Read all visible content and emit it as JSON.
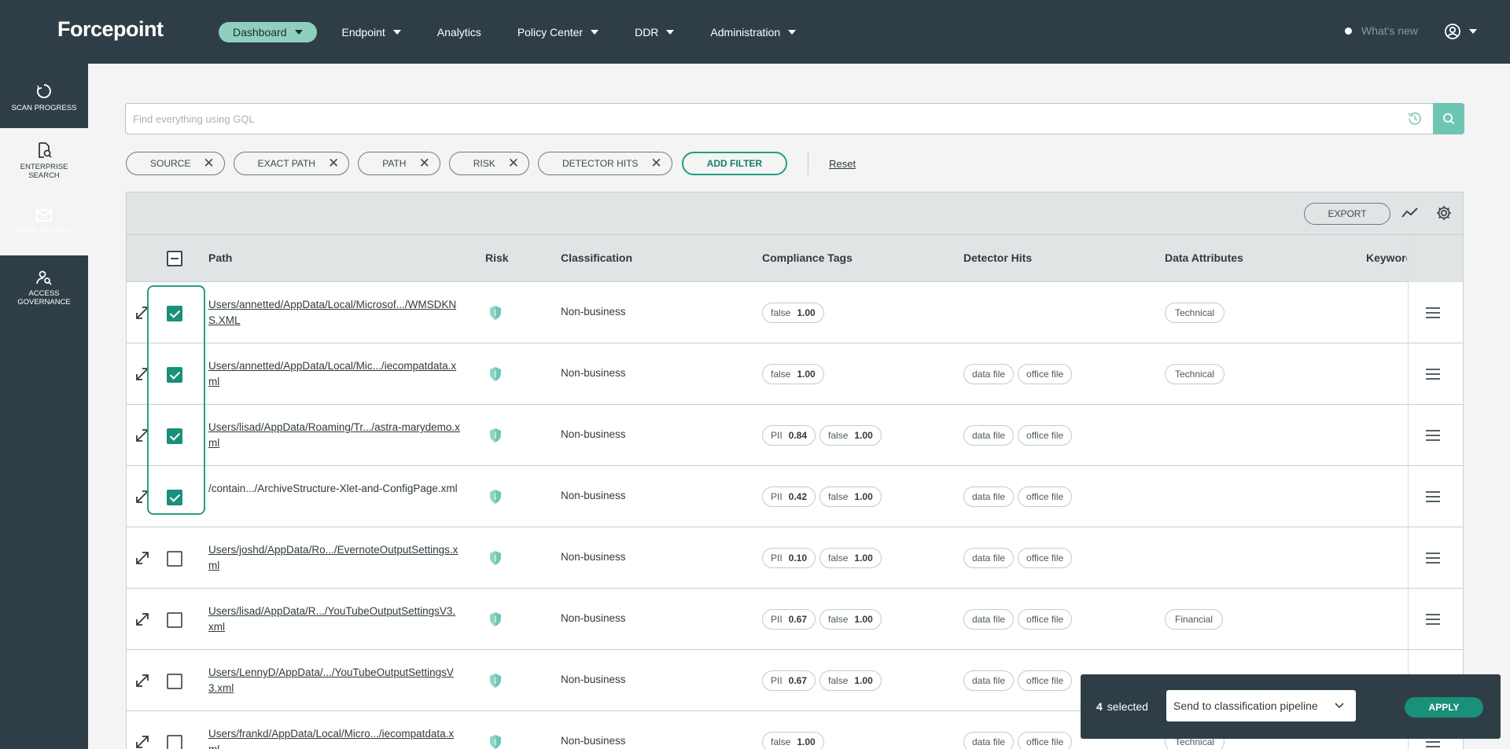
{
  "brand": {
    "logo_text": "Forcepoint"
  },
  "nav": {
    "items": [
      {
        "label": "Dashboard",
        "active": true,
        "dropdown": true
      },
      {
        "label": "Endpoint",
        "active": false,
        "dropdown": true
      },
      {
        "label": "Analytics",
        "active": false,
        "dropdown": false
      },
      {
        "label": "Policy Center",
        "active": false,
        "dropdown": true
      },
      {
        "label": "DDR",
        "active": false,
        "dropdown": true
      },
      {
        "label": "Administration",
        "active": false,
        "dropdown": true
      }
    ],
    "whats_new": "What's new"
  },
  "sidebar": {
    "items": [
      {
        "label": "SCAN PROGRESS",
        "icon": "progress-circle-icon"
      },
      {
        "label": "ENTERPRISE SEARCH",
        "icon": "document-search-icon",
        "active": true
      },
      {
        "label": "EMAIL SEARCH",
        "icon": "envelope-icon"
      },
      {
        "label": "ACCESS GOVERNANCE",
        "icon": "user-search-icon"
      }
    ]
  },
  "search": {
    "placeholder": "Find everything using GQL",
    "value": ""
  },
  "filters": {
    "chips": [
      "SOURCE",
      "EXACT PATH",
      "PATH",
      "RISK",
      "DETECTOR HITS"
    ],
    "add_label": "ADD FILTER",
    "reset_label": "Reset"
  },
  "toolbar": {
    "export_label": "EXPORT"
  },
  "columns": {
    "path": "Path",
    "risk": "Risk",
    "classification": "Classification",
    "compliance": "Compliance Tags",
    "detectors": "Detector Hits",
    "attributes": "Data Attributes",
    "keywords": "Keywords"
  },
  "rows": [
    {
      "path": "Users/annetted/AppData/Local/Microsof.../WMSDKNS.XML",
      "link": true,
      "checked": true,
      "classification": "Non-business",
      "tags": [
        {
          "name": "false",
          "score": "1.00"
        }
      ],
      "detectors": [],
      "attributes": [
        "Technical"
      ]
    },
    {
      "path": "Users/annetted/AppData/Local/Mic.../iecompatdata.xml",
      "link": true,
      "checked": true,
      "classification": "Non-business",
      "tags": [
        {
          "name": "false",
          "score": "1.00"
        }
      ],
      "detectors": [
        "data file",
        "office file"
      ],
      "attributes": [
        "Technical"
      ]
    },
    {
      "path": "Users/lisad/AppData/Roaming/Tr.../astra-marydemo.xml",
      "link": true,
      "checked": true,
      "classification": "Non-business",
      "tags": [
        {
          "name": "PII",
          "score": "0.84"
        },
        {
          "name": "false",
          "score": "1.00"
        }
      ],
      "detectors": [
        "data file",
        "office file"
      ],
      "attributes": []
    },
    {
      "path": "/contain.../ArchiveStructure-Xlet-and-ConfigPage.xml",
      "link": false,
      "checked": true,
      "classification": "Non-business",
      "tags": [
        {
          "name": "PII",
          "score": "0.42"
        },
        {
          "name": "false",
          "score": "1.00"
        }
      ],
      "detectors": [
        "data file",
        "office file"
      ],
      "attributes": []
    },
    {
      "path": "Users/joshd/AppData/Ro.../EvernoteOutputSettings.xml",
      "link": true,
      "checked": false,
      "classification": "Non-business",
      "tags": [
        {
          "name": "PII",
          "score": "0.10"
        },
        {
          "name": "false",
          "score": "1.00"
        }
      ],
      "detectors": [
        "data file",
        "office file"
      ],
      "attributes": []
    },
    {
      "path": "Users/lisad/AppData/R.../YouTubeOutputSettingsV3.xml",
      "link": true,
      "checked": false,
      "classification": "Non-business",
      "tags": [
        {
          "name": "PII",
          "score": "0.67"
        },
        {
          "name": "false",
          "score": "1.00"
        }
      ],
      "detectors": [
        "data file",
        "office file"
      ],
      "attributes": [
        "Financial"
      ]
    },
    {
      "path": "Users/LennyD/AppData/.../YouTubeOutputSettingsV3.xml",
      "link": true,
      "checked": false,
      "classification": "Non-business",
      "tags": [
        {
          "name": "PII",
          "score": "0.67"
        },
        {
          "name": "false",
          "score": "1.00"
        }
      ],
      "detectors": [
        "data file",
        "office file"
      ],
      "attributes": []
    },
    {
      "path": "Users/frankd/AppData/Local/Micro.../iecompatdata.xml",
      "link": true,
      "checked": false,
      "classification": "Non-business",
      "tags": [
        {
          "name": "false",
          "score": "1.00"
        }
      ],
      "detectors": [
        "data file",
        "office file"
      ],
      "attributes": [
        "Technical"
      ]
    }
  ],
  "selection": {
    "count": "4",
    "count_label": "selected",
    "action_value": "Send to classification pipeline",
    "apply_label": "APPLY"
  },
  "colors": {
    "nav_bg": "#2f3e46",
    "accent": "#1a8f7a",
    "accent_light": "#6fc5b4",
    "active_pill": "#8fcfbf"
  }
}
